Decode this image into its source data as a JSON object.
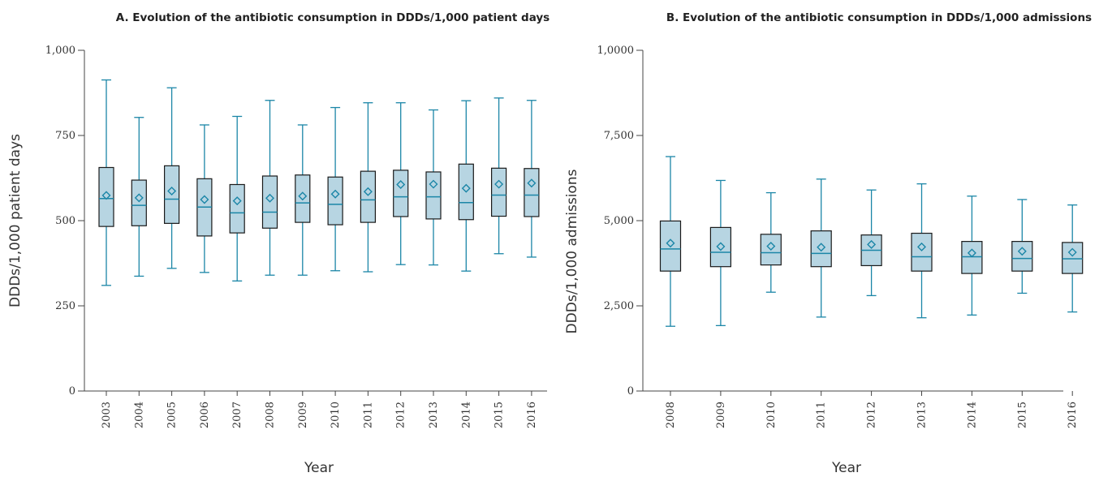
{
  "colors": {
    "box_fill": "#b7d5e2",
    "box_stroke": "#1a1a1a",
    "accent": "#1b86a7",
    "axis": "#444444"
  },
  "chart_data": [
    {
      "type": "box",
      "title": "A. Evolution of the antibiotic consumption in DDDs/1,000 patient days",
      "xlabel": "Year",
      "ylabel": "DDDs/1,000 patient days",
      "ylim": [
        0,
        1000
      ],
      "yticks": [
        0,
        250,
        500,
        750,
        1000
      ],
      "ytick_labels": [
        "0",
        "250",
        "500",
        "750",
        "1,000"
      ],
      "grid": false,
      "categories": [
        "2003",
        "2004",
        "2005",
        "2006",
        "2007",
        "2008",
        "2009",
        "2010",
        "2011",
        "2012",
        "2013",
        "2014",
        "2015",
        "2016"
      ],
      "boxes": [
        {
          "min": 310,
          "q1": 483,
          "median": 565,
          "q3": 656,
          "max": 913,
          "mean": 574
        },
        {
          "min": 337,
          "q1": 485,
          "median": 545,
          "q3": 619,
          "max": 803,
          "mean": 567
        },
        {
          "min": 360,
          "q1": 492,
          "median": 563,
          "q3": 661,
          "max": 890,
          "mean": 587
        },
        {
          "min": 348,
          "q1": 455,
          "median": 540,
          "q3": 623,
          "max": 781,
          "mean": 562
        },
        {
          "min": 323,
          "q1": 464,
          "median": 523,
          "q3": 606,
          "max": 806,
          "mean": 558
        },
        {
          "min": 340,
          "q1": 478,
          "median": 525,
          "q3": 631,
          "max": 853,
          "mean": 566
        },
        {
          "min": 340,
          "q1": 495,
          "median": 552,
          "q3": 634,
          "max": 781,
          "mean": 572
        },
        {
          "min": 353,
          "q1": 488,
          "median": 548,
          "q3": 628,
          "max": 832,
          "mean": 578
        },
        {
          "min": 350,
          "q1": 495,
          "median": 561,
          "q3": 645,
          "max": 846,
          "mean": 585
        },
        {
          "min": 371,
          "q1": 512,
          "median": 570,
          "q3": 648,
          "max": 846,
          "mean": 606
        },
        {
          "min": 370,
          "q1": 505,
          "median": 570,
          "q3": 643,
          "max": 825,
          "mean": 607
        },
        {
          "min": 352,
          "q1": 503,
          "median": 553,
          "q3": 666,
          "max": 852,
          "mean": 595
        },
        {
          "min": 403,
          "q1": 513,
          "median": 575,
          "q3": 654,
          "max": 860,
          "mean": 607
        },
        {
          "min": 393,
          "q1": 512,
          "median": 575,
          "q3": 653,
          "max": 853,
          "mean": 610
        }
      ]
    },
    {
      "type": "box",
      "title": "B. Evolution of the antibiotic consumption in DDDs/1,000 admissions",
      "xlabel": "Year",
      "ylabel": "DDDs/1,000 admissions",
      "ylim": [
        0,
        10000
      ],
      "yticks": [
        0,
        2500,
        5000,
        7500,
        10000
      ],
      "ytick_labels": [
        "0",
        "2,500",
        "5,000",
        "7,500",
        "1,0000"
      ],
      "grid": false,
      "categories": [
        "2008",
        "2009",
        "2010",
        "2011",
        "2012",
        "2013",
        "2014",
        "2015",
        "2016"
      ],
      "boxes": [
        {
          "min": 1900,
          "q1": 3520,
          "median": 4170,
          "q3": 4990,
          "max": 6880,
          "mean": 4340
        },
        {
          "min": 1920,
          "q1": 3650,
          "median": 4070,
          "q3": 4800,
          "max": 6180,
          "mean": 4240
        },
        {
          "min": 2900,
          "q1": 3700,
          "median": 4060,
          "q3": 4600,
          "max": 5820,
          "mean": 4250
        },
        {
          "min": 2170,
          "q1": 3650,
          "median": 4040,
          "q3": 4700,
          "max": 6220,
          "mean": 4220
        },
        {
          "min": 2800,
          "q1": 3680,
          "median": 4130,
          "q3": 4580,
          "max": 5900,
          "mean": 4300
        },
        {
          "min": 2150,
          "q1": 3520,
          "median": 3940,
          "q3": 4630,
          "max": 6080,
          "mean": 4230
        },
        {
          "min": 2230,
          "q1": 3450,
          "median": 3940,
          "q3": 4390,
          "max": 5720,
          "mean": 4050
        },
        {
          "min": 2870,
          "q1": 3520,
          "median": 3890,
          "q3": 4390,
          "max": 5620,
          "mean": 4100
        },
        {
          "min": 2320,
          "q1": 3450,
          "median": 3880,
          "q3": 4360,
          "max": 5460,
          "mean": 4070
        }
      ]
    }
  ]
}
